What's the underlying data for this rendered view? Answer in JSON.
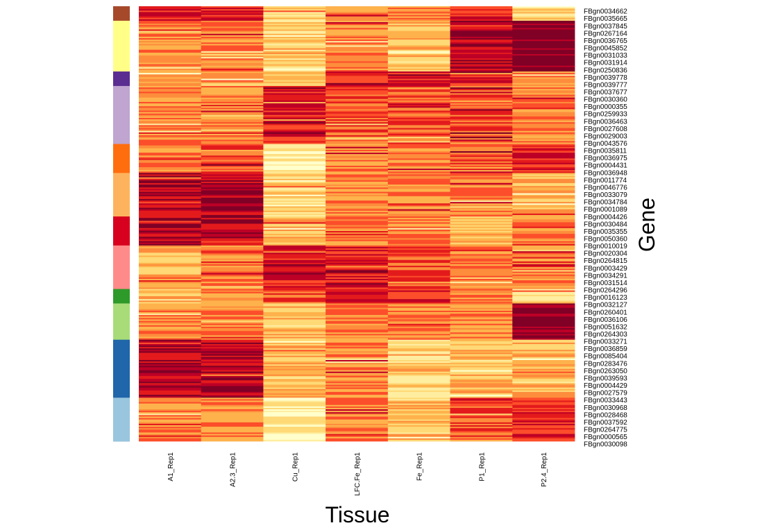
{
  "chart_data": {
    "type": "heatmap",
    "title": "",
    "xlabel": "Tissue",
    "ylabel": "Gene",
    "columns": [
      "A1_Rep1",
      "A2.3_Rep1",
      "Cu_Rep1",
      "LFC.Fe_Rep1",
      "Fe_Rep1",
      "P1_Rep1",
      "P2.4_Rep1"
    ],
    "row_labels": [
      "FBgn0034662",
      "FBgn0035665",
      "FBgn0037845",
      "FBgn0267164",
      "FBgn0036765",
      "FBgn0045852",
      "FBgn0031033",
      "FBgn0031914",
      "FBgn0250836",
      "FBgn0039778",
      "FBgn0039777",
      "FBgn0037677",
      "FBgn0030360",
      "FBgn0000355",
      "FBgn0259933",
      "FBgn0036463",
      "FBgn0027608",
      "FBgn0029003",
      "FBgn0043576",
      "FBgn0035811",
      "FBgn0036975",
      "FBgn0004431",
      "FBgn0036948",
      "FBgn0011774",
      "FBgn0046776",
      "FBgn0033079",
      "FBgn0034784",
      "FBgn0001089",
      "FBgn0004426",
      "FBgn0030484",
      "FBgn0035355",
      "FBgn0050360",
      "FBgn0010019",
      "FBgn0020304",
      "FBgn0264815",
      "FBgn0003429",
      "FBgn0034291",
      "FBgn0031514",
      "FBgn0264296",
      "FBgn0016123",
      "FBgn0032127",
      "FBgn0260401",
      "FBgn0036106",
      "FBgn0051632",
      "FBgn0264303",
      "FBgn0033271",
      "FBgn0036859",
      "FBgn0085404",
      "FBgn0283476",
      "FBgn0263050",
      "FBgn0039593",
      "FBgn0004429",
      "FBgn0027579",
      "FBgn0033443",
      "FBgn0030968",
      "FBgn0028468",
      "FBgn0037592",
      "FBgn0264775",
      "FBgn0000565",
      "FBgn0030098"
    ],
    "color_scale": [
      "#ffffcc",
      "#ffeda0",
      "#fed976",
      "#feb24c",
      "#fd8d3c",
      "#fc4e2a",
      "#e31a1c",
      "#bd0026",
      "#800026"
    ],
    "cluster_colors": [
      "#a6492a",
      "#ffff88",
      "#5a2d91",
      "#bfa5d0",
      "#ff6e0e",
      "#fdb35d",
      "#d7001e",
      "#ff8a8a",
      "#2e9a2a",
      "#a8dc78",
      "#1f66aa",
      "#99c5de"
    ],
    "clusters": [
      {
        "color": "#a6492a",
        "rows": 2,
        "levels": [
          6,
          6,
          2,
          4,
          4,
          6,
          2
        ]
      },
      {
        "color": "#ffff88",
        "rows": 7,
        "levels": [
          4,
          4,
          2,
          4,
          3,
          7,
          8
        ]
      },
      {
        "color": "#5a2d91",
        "rows": 2,
        "levels": [
          3,
          3,
          3,
          6,
          6,
          6,
          4
        ]
      },
      {
        "color": "#bfa5d0",
        "rows": 8,
        "levels": [
          4,
          4,
          6,
          5,
          5,
          5,
          4
        ]
      },
      {
        "color": "#ff6e0e",
        "rows": 4,
        "levels": [
          4,
          5,
          1,
          4,
          4,
          5,
          6
        ]
      },
      {
        "color": "#fdb35d",
        "rows": 6,
        "levels": [
          7,
          7,
          2,
          4,
          4,
          4,
          3
        ]
      },
      {
        "color": "#d7001e",
        "rows": 4,
        "levels": [
          7,
          7,
          3,
          4,
          4,
          3,
          4
        ]
      },
      {
        "color": "#ff8a8a",
        "rows": 6,
        "levels": [
          3,
          4,
          6,
          6,
          5,
          4,
          4
        ]
      },
      {
        "color": "#2e9a2a",
        "rows": 2,
        "levels": [
          3,
          4,
          5,
          6,
          6,
          4,
          2
        ]
      },
      {
        "color": "#a8dc78",
        "rows": 5,
        "levels": [
          4,
          4,
          3,
          4,
          4,
          4,
          8
        ]
      },
      {
        "color": "#1f66aa",
        "rows": 8,
        "levels": [
          7,
          7,
          3,
          4,
          2,
          3,
          3
        ]
      },
      {
        "color": "#99c5de",
        "rows": 6,
        "levels": [
          4,
          4,
          1,
          4,
          3,
          5,
          6
        ]
      }
    ],
    "legend": "none",
    "grid": false
  }
}
